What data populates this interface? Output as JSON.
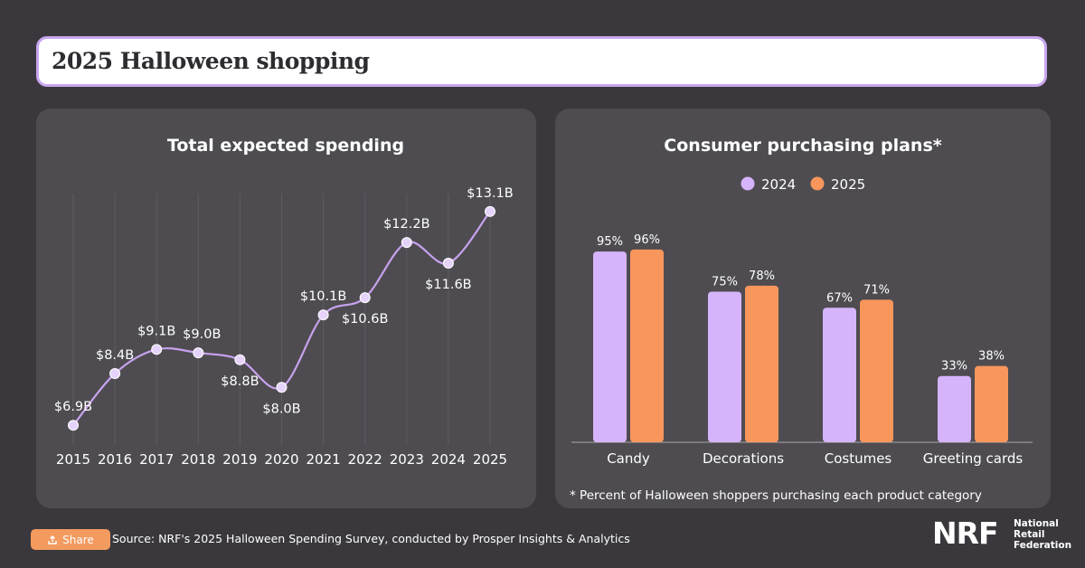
{
  "page_title": "2025 Halloween shopping",
  "colors": {
    "background": "#3a383c",
    "panel": "#4e4c50",
    "purple": "#d6b4fb",
    "orange": "#f8965b",
    "line": "#c7a2ee"
  },
  "footer": {
    "share_label": "Share",
    "share_icon": "share-icon",
    "source": "Source: NRF's 2025 Halloween Spending Survey, conducted by Prosper Insights & Analytics"
  },
  "logo": {
    "mark": "NRF",
    "words": [
      "National",
      "Retail",
      "Federation"
    ]
  },
  "chart_data": [
    {
      "type": "line",
      "title": "Total expected spending",
      "x": [
        "2015",
        "2016",
        "2017",
        "2018",
        "2019",
        "2020",
        "2021",
        "2022",
        "2023",
        "2024",
        "2025"
      ],
      "values": [
        6.9,
        8.4,
        9.1,
        9.0,
        8.8,
        8.0,
        10.1,
        10.6,
        12.2,
        11.6,
        13.1
      ],
      "labels": [
        "$6.9B",
        "$8.4B",
        "$9.1B",
        "$9.0B",
        "$8.8B",
        "$8.0B",
        "$10.1B",
        "$10.6B",
        "$12.2B",
        "$11.6B",
        "$13.1B"
      ],
      "ylim": [
        6.8,
        13.2
      ],
      "grid": "vertical"
    },
    {
      "type": "bar",
      "title": "Consumer purchasing plans*",
      "categories": [
        "Candy",
        "Decorations",
        "Costumes",
        "Greeting cards"
      ],
      "series": [
        {
          "name": "2024",
          "values": [
            95,
            75,
            67,
            33
          ]
        },
        {
          "name": "2025",
          "values": [
            96,
            78,
            71,
            38
          ]
        }
      ],
      "unit": "%",
      "ylim": [
        0,
        100
      ],
      "legend": "top-center",
      "note": "* Percent of Halloween shoppers purchasing each product category"
    }
  ]
}
